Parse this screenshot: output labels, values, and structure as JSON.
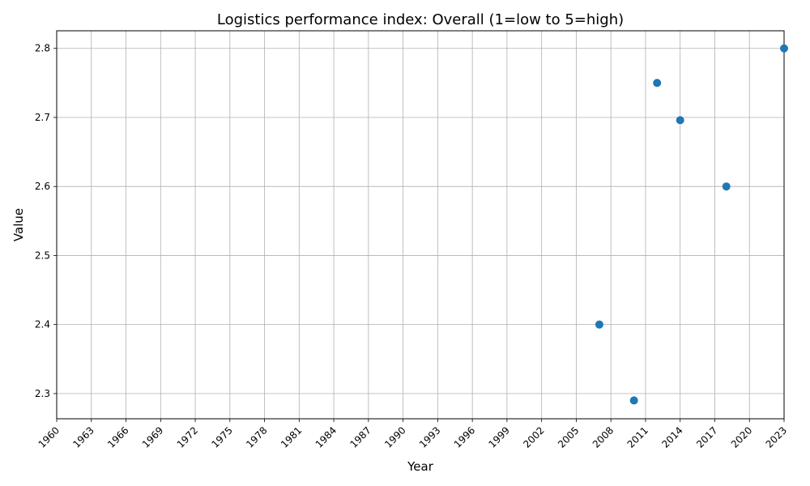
{
  "chart_data": {
    "type": "scatter",
    "title": "Logistics performance index: Overall (1=low to 5=high)",
    "xlabel": "Year",
    "ylabel": "Value",
    "xlim": [
      1960,
      2023
    ],
    "ylim": [
      2.2635,
      2.8255
    ],
    "x_ticks": [
      1960,
      1963,
      1966,
      1969,
      1972,
      1975,
      1978,
      1981,
      1984,
      1987,
      1990,
      1993,
      1996,
      1999,
      2002,
      2005,
      2008,
      2011,
      2014,
      2017,
      2020,
      2023
    ],
    "y_ticks": [
      2.3,
      2.4,
      2.5,
      2.6,
      2.7,
      2.8
    ],
    "grid": true,
    "marker_color": "#1f77b4",
    "points": [
      {
        "x": 2007,
        "y": 2.4
      },
      {
        "x": 2010,
        "y": 2.29
      },
      {
        "x": 2012,
        "y": 2.75
      },
      {
        "x": 2014,
        "y": 2.696
      },
      {
        "x": 2018,
        "y": 2.6
      },
      {
        "x": 2023,
        "y": 2.8
      }
    ]
  }
}
